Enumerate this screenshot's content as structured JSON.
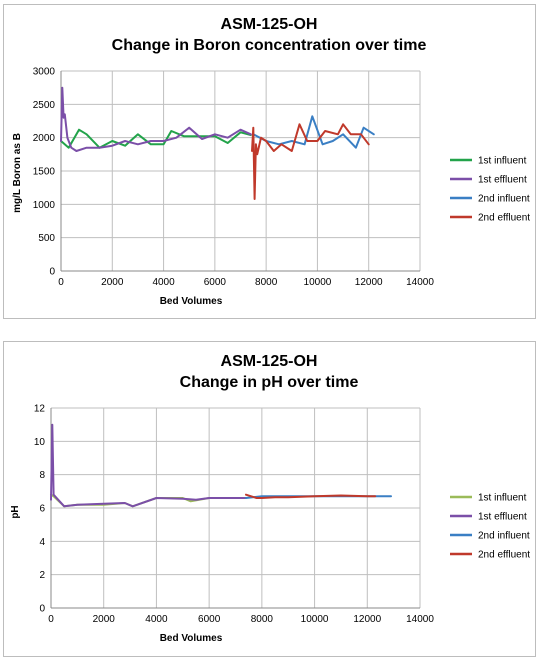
{
  "chart_data": [
    {
      "type": "line",
      "title": "ASM-125-OH",
      "subtitle": "Change in Boron concentration over time",
      "xlabel": "Bed Volumes",
      "ylabel": "mg/L Boron as B",
      "xlim": [
        0,
        14000
      ],
      "ylim": [
        0,
        3000
      ],
      "xticks": [
        0,
        2000,
        4000,
        6000,
        8000,
        10000,
        12000,
        14000
      ],
      "yticks": [
        0,
        500,
        1000,
        1500,
        2000,
        2500,
        3000
      ],
      "grid": true,
      "legend": "right",
      "series": [
        {
          "name": "1st influent",
          "color": "#22a34a",
          "x": [
            0,
            300,
            700,
            1000,
            1500,
            2000,
            2500,
            3000,
            3500,
            4000,
            4300,
            4800,
            5500,
            6000,
            6500,
            7000,
            7400
          ],
          "y": [
            1950,
            1850,
            2120,
            2050,
            1850,
            1950,
            1880,
            2050,
            1900,
            1900,
            2100,
            2020,
            2020,
            2020,
            1920,
            2080,
            2040
          ]
        },
        {
          "name": "1st effluent",
          "color": "#7b4fa8",
          "x": [
            0,
            50,
            100,
            150,
            250,
            400,
            600,
            1000,
            1500,
            2000,
            2500,
            3000,
            3500,
            4000,
            4500,
            5000,
            5500,
            6000,
            6500,
            7000,
            7400
          ],
          "y": [
            1950,
            2750,
            2300,
            2350,
            2000,
            1850,
            1800,
            1850,
            1850,
            1880,
            1950,
            1900,
            1950,
            1950,
            2000,
            2150,
            1980,
            2050,
            2000,
            2120,
            2050
          ]
        },
        {
          "name": "2nd influent",
          "color": "#3a7fc4",
          "x": [
            7500,
            8000,
            8500,
            9000,
            9500,
            9800,
            10200,
            10600,
            11000,
            11500,
            11800,
            12200
          ],
          "y": [
            2050,
            1950,
            1900,
            1950,
            1900,
            2320,
            1900,
            1950,
            2050,
            1850,
            2150,
            2050
          ]
        },
        {
          "name": "2nd effluent",
          "color": "#c0392b",
          "x": [
            7450,
            7500,
            7550,
            7600,
            7650,
            7800,
            8000,
            8300,
            8600,
            9000,
            9300,
            9600,
            10000,
            10300,
            10800,
            11000,
            11300,
            11700,
            12000
          ],
          "y": [
            1800,
            2150,
            1080,
            1900,
            1750,
            2000,
            1950,
            1800,
            1900,
            1800,
            2200,
            1950,
            1950,
            2100,
            2050,
            2200,
            2050,
            2050,
            1900
          ]
        }
      ]
    },
    {
      "type": "line",
      "title": "ASM-125-OH",
      "subtitle": "Change in pH over time",
      "xlabel": "Bed Volumes",
      "ylabel": "pH",
      "xlim": [
        0,
        14000
      ],
      "ylim": [
        0,
        12
      ],
      "xticks": [
        0,
        2000,
        4000,
        6000,
        8000,
        10000,
        12000,
        14000
      ],
      "yticks": [
        0,
        2,
        4,
        6,
        8,
        10,
        12
      ],
      "grid": true,
      "legend": "right",
      "series": [
        {
          "name": "1st influent",
          "color": "#9bbb59",
          "x": [
            0,
            100,
            500,
            1000,
            2000,
            2800,
            3100,
            4000,
            5000,
            5300,
            6000,
            7000,
            7400
          ],
          "y": [
            6.8,
            6.7,
            6.1,
            6.2,
            6.2,
            6.3,
            6.1,
            6.6,
            6.6,
            6.4,
            6.6,
            6.6,
            6.6
          ]
        },
        {
          "name": "1st effluent",
          "color": "#7b4fa8",
          "x": [
            0,
            50,
            100,
            500,
            1000,
            2000,
            2800,
            3100,
            4000,
            5000,
            5500,
            6000,
            7000,
            7400
          ],
          "y": [
            6.5,
            11.0,
            6.8,
            6.1,
            6.2,
            6.25,
            6.3,
            6.1,
            6.6,
            6.55,
            6.5,
            6.6,
            6.6,
            6.6
          ]
        },
        {
          "name": "2nd influent",
          "color": "#3a7fc4",
          "x": [
            7400,
            8000,
            9000,
            10000,
            11000,
            12000,
            12900
          ],
          "y": [
            6.6,
            6.7,
            6.7,
            6.7,
            6.7,
            6.7,
            6.7
          ]
        },
        {
          "name": "2nd effluent",
          "color": "#c0392b",
          "x": [
            7400,
            7800,
            8000,
            8500,
            9000,
            10000,
            11000,
            12000,
            12300
          ],
          "y": [
            6.8,
            6.6,
            6.6,
            6.65,
            6.65,
            6.7,
            6.75,
            6.7,
            6.7
          ]
        }
      ]
    }
  ]
}
